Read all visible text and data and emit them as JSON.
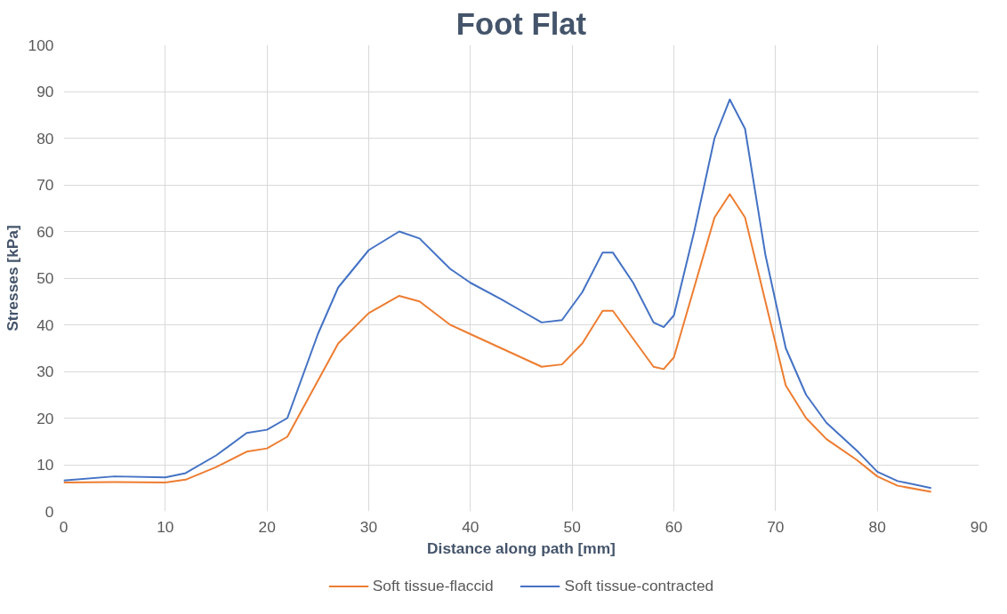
{
  "chart_data": {
    "type": "line",
    "title": "Foot Flat",
    "xlabel": "Distance along path [mm]",
    "ylabel": "Stresses [kPa]",
    "x": [
      0,
      5,
      10,
      12,
      15,
      18,
      20,
      22,
      25,
      27,
      30,
      33,
      35,
      38,
      40,
      43,
      45,
      47,
      49,
      51,
      53,
      54,
      56,
      58,
      59,
      60,
      62,
      64,
      65.5,
      67,
      69,
      71,
      73,
      75,
      78,
      80,
      82,
      85.3
    ],
    "series": [
      {
        "name": "Soft tissue-flaccid",
        "color": "#ed7d31",
        "values": [
          6.2,
          6.3,
          6.2,
          6.8,
          9.5,
          12.8,
          13.5,
          16,
          28,
          36,
          42.5,
          46.2,
          45,
          40,
          38,
          35,
          33,
          31,
          31.5,
          36,
          43,
          43,
          37,
          31,
          30.5,
          33,
          48,
          63,
          68,
          63,
          45,
          27,
          20,
          15.5,
          11,
          7.5,
          5.5,
          4.2
        ]
      },
      {
        "name": "Soft tissue-contracted",
        "color": "#4472c4",
        "values": [
          6.6,
          7.5,
          7.3,
          8.2,
          12,
          16.8,
          17.5,
          20,
          38,
          48,
          56,
          60,
          58.5,
          52,
          49,
          45.5,
          43,
          40.5,
          41,
          47,
          55.5,
          55.5,
          49,
          40.5,
          39.5,
          42,
          60,
          80,
          88.3,
          82,
          55,
          35,
          25,
          19,
          13,
          8.5,
          6.5,
          5
        ]
      }
    ],
    "xlim": [
      0,
      90
    ],
    "xticks": [
      0,
      10,
      20,
      30,
      40,
      50,
      60,
      70,
      80,
      90
    ],
    "ylim": [
      0,
      100
    ],
    "yticks": [
      0,
      10,
      20,
      30,
      40,
      50,
      60,
      70,
      80,
      90,
      100
    ],
    "grid": true,
    "legend": "bottom",
    "marker": "none",
    "line_style": "solid"
  }
}
